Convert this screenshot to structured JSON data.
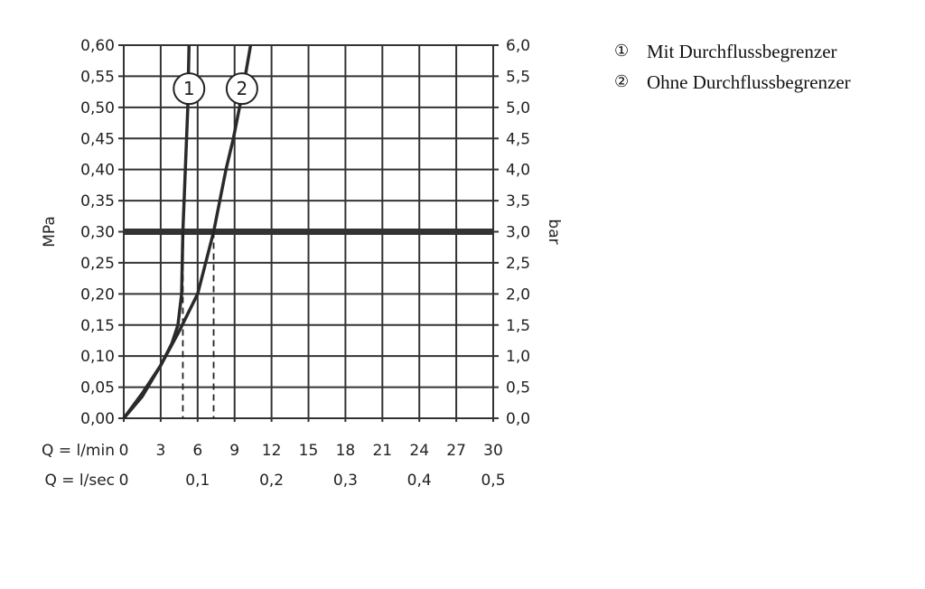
{
  "chart_data": {
    "type": "line",
    "ylabel_left": "MPa",
    "ylabel_right": "bar",
    "ylim": [
      0,
      0.6
    ],
    "xlim": [
      0,
      30
    ],
    "grid": true,
    "y_ticks_left": [
      "0,00",
      "0,05",
      "0,10",
      "0,15",
      "0,20",
      "0,25",
      "0,30",
      "0,35",
      "0,40",
      "0,45",
      "0,50",
      "0,55",
      "0,60"
    ],
    "y_ticks_right": [
      "0,0",
      "0,5",
      "1,0",
      "1,5",
      "2,0",
      "2,5",
      "3,0",
      "3,5",
      "4,0",
      "4,5",
      "5,0",
      "5,5",
      "6,0"
    ],
    "x_label_lmin": "Q = l/min",
    "x_ticks_lmin": [
      "0",
      "3",
      "6",
      "9",
      "12",
      "15",
      "18",
      "21",
      "24",
      "27",
      "30"
    ],
    "x_label_lsec": "Q = l/sec",
    "x_ticks_lsec": [
      {
        "v": 0,
        "t": "0"
      },
      {
        "v": 6,
        "t": "0,1"
      },
      {
        "v": 12,
        "t": "0,2"
      },
      {
        "v": 18,
        "t": "0,3"
      },
      {
        "v": 24,
        "t": "0,4"
      },
      {
        "v": 30,
        "t": "0,5"
      }
    ],
    "reference_line": 0.3,
    "series": [
      {
        "name": "1",
        "x": [
          0,
          1.5,
          3,
          3.9,
          4.4,
          4.7,
          4.8,
          5.0,
          5.2,
          5.3
        ],
        "y": [
          0,
          0.035,
          0.085,
          0.12,
          0.15,
          0.2,
          0.3,
          0.4,
          0.5,
          0.6
        ],
        "marker_at_y": 0.3,
        "label_pos": [
          5.3,
          0.53
        ]
      },
      {
        "name": "2",
        "x": [
          0,
          1.5,
          3,
          4.5,
          6,
          7.3,
          8.3,
          8.9,
          9.6,
          10.3
        ],
        "y": [
          0,
          0.04,
          0.085,
          0.14,
          0.2,
          0.3,
          0.4,
          0.45,
          0.52,
          0.6
        ],
        "marker_at_y": 0.3,
        "label_pos": [
          9.6,
          0.53
        ]
      }
    ]
  },
  "legend": [
    {
      "num": "①",
      "text": "Mit Durchflussbegrenzer"
    },
    {
      "num": "②",
      "text": "Ohne Durchflussbegrenzer"
    }
  ]
}
